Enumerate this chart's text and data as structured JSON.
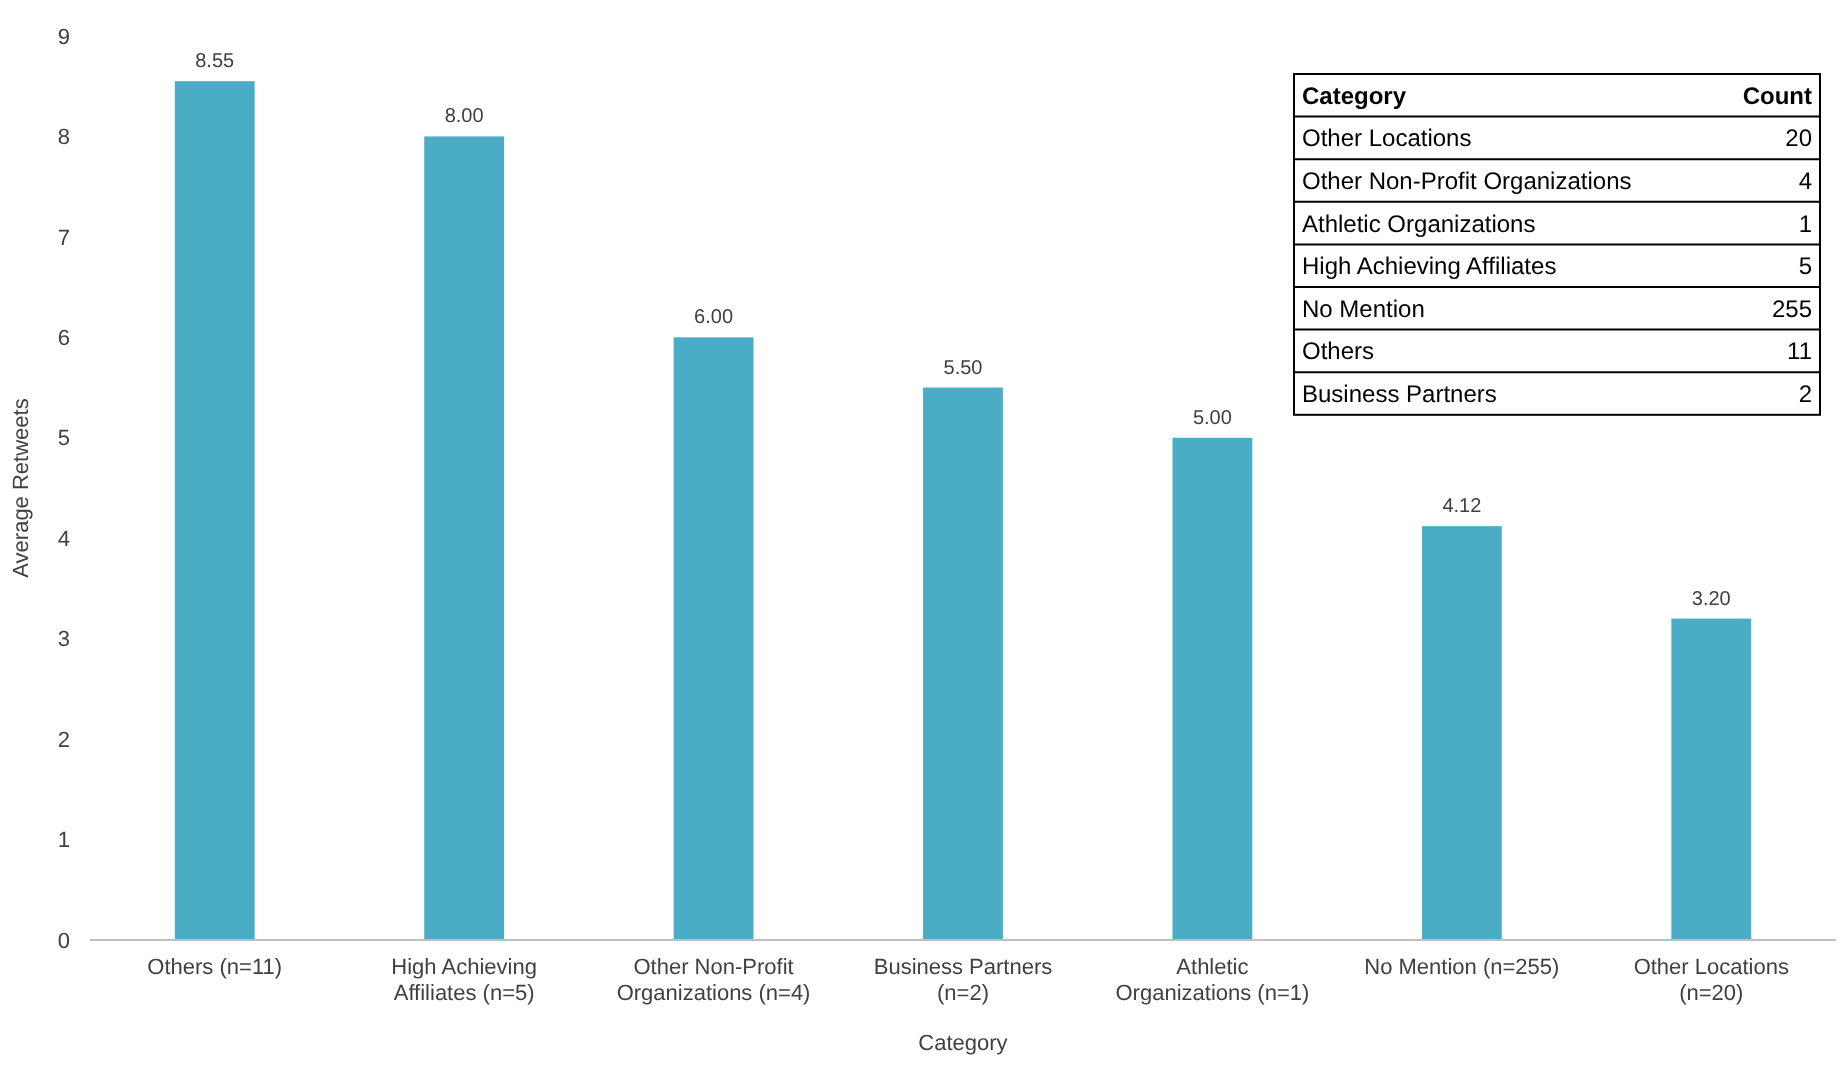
{
  "chart_data": {
    "type": "bar",
    "xlabel": "Category",
    "ylabel": "Average Retweets",
    "categories": [
      "Others (n=11)",
      "High Achieving Affiliates (n=5)",
      "Other Non-Profit Organizations (n=4)",
      "Business Partners (n=2)",
      "Athletic Organizations (n=1)",
      "No Mention (n=255)",
      "Other Locations (n=20)"
    ],
    "values": [
      8.55,
      8.0,
      6.0,
      5.5,
      5.0,
      4.12,
      3.2
    ],
    "value_labels": [
      "8.55",
      "8.00",
      "6.00",
      "5.50",
      "5.00",
      "4.12",
      "3.20"
    ],
    "color": "#4bacc6",
    "ylim": [
      0,
      9
    ],
    "yticks": [
      0,
      1,
      2,
      3,
      4,
      5,
      6,
      7,
      8,
      9
    ],
    "grid": false,
    "annotations": [
      "Category",
      "Count",
      "Other Locations",
      "20",
      "Other Non-Profit Organizations",
      "4",
      "Athletic Organizations",
      "1",
      "High Achieving Affiliates",
      "5",
      "No Mention",
      "255",
      "Others",
      "11",
      "Business Partners",
      "2"
    ]
  }
}
